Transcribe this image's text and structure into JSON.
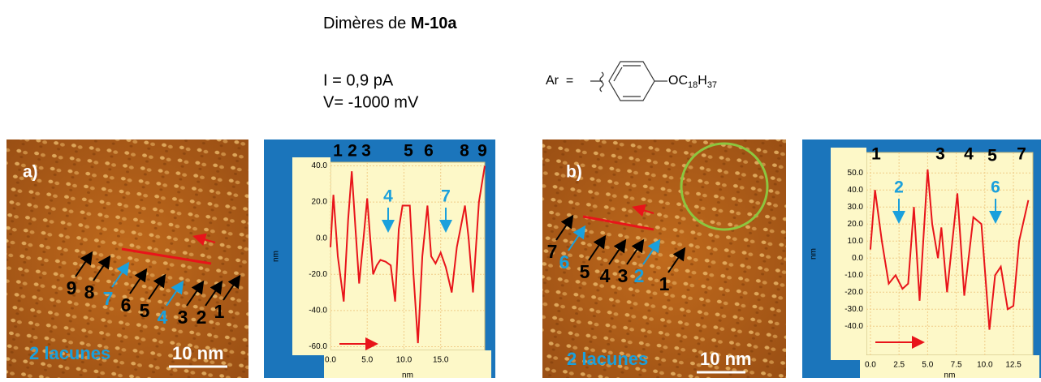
{
  "header": {
    "title_prefix": "Dimères de ",
    "title_bold": "M-10a",
    "current": "I = 0,9 pA",
    "voltage": "V= -1000 mV",
    "ar_label": "Ar  =",
    "substituent": [
      "OC",
      "18",
      "H",
      "37"
    ]
  },
  "images": [
    {
      "label": "a)",
      "defects": "2 lacunes",
      "scale": "10 nm",
      "markers": [
        {
          "text": "9",
          "color": "#000000"
        },
        {
          "text": "8",
          "color": "#000000"
        },
        {
          "text": "7",
          "color": "#1aa0dc"
        },
        {
          "text": "6",
          "color": "#000000"
        },
        {
          "text": "5",
          "color": "#000000"
        },
        {
          "text": "4",
          "color": "#1aa0dc"
        },
        {
          "text": "3",
          "color": "#000000"
        },
        {
          "text": "2",
          "color": "#000000"
        },
        {
          "text": "1",
          "color": "#000000"
        }
      ]
    },
    {
      "label": "b)",
      "defects": "2 lacunes",
      "scale": "10 nm",
      "markers": [
        {
          "text": "7",
          "color": "#000000"
        },
        {
          "text": "6",
          "color": "#1aa0dc"
        },
        {
          "text": "5",
          "color": "#000000"
        },
        {
          "text": "4",
          "color": "#000000"
        },
        {
          "text": "3",
          "color": "#000000"
        },
        {
          "text": "2",
          "color": "#1aa0dc"
        },
        {
          "text": "1",
          "color": "#000000"
        }
      ]
    }
  ],
  "chart_data": [
    {
      "type": "line",
      "x_label": "nm",
      "y_label": "nm",
      "x": [
        0,
        0.4,
        1.0,
        1.8,
        2.4,
        2.9,
        3.4,
        3.9,
        4.5,
        5.0,
        5.4,
        5.8,
        6.3,
        6.8,
        7.5,
        8.2,
        8.8,
        9.3,
        9.8,
        10.8,
        11.3,
        11.9,
        12.5,
        13.2,
        13.7,
        14.3,
        15.0,
        15.7,
        16.5,
        17.2,
        18.3,
        18.8,
        19.4,
        20.2,
        21.0
      ],
      "series": [
        {
          "color": "#e8141a",
          "values": [
            -5,
            24,
            -10,
            -35,
            10,
            37,
            5,
            -25,
            0,
            22,
            0,
            -20,
            -15,
            -12,
            -13,
            -15,
            -35,
            5,
            18,
            18,
            -20,
            -58,
            -10,
            18,
            -10,
            -14,
            -8,
            -16,
            -30,
            -5,
            18,
            0,
            -30,
            20,
            40
          ]
        }
      ],
      "xlim": [
        0,
        21
      ],
      "ylim": [
        -62,
        42
      ],
      "xticks": [
        {
          "value": 0,
          "label": "0.0"
        },
        {
          "value": 5,
          "label": "5.0"
        },
        {
          "value": 10,
          "label": "10.0"
        },
        {
          "value": 15,
          "label": "15.0"
        }
      ],
      "yticks": [
        {
          "value": 40,
          "label": "40.0"
        },
        {
          "value": 20,
          "label": "20.0"
        },
        {
          "value": 0,
          "label": "0.0"
        },
        {
          "value": -20,
          "label": "-20.0"
        },
        {
          "value": -40,
          "label": "-40.0"
        },
        {
          "value": -60,
          "label": "-60.0"
        }
      ],
      "grid": true,
      "annotations": [
        {
          "text": "1",
          "color": "#000000"
        },
        {
          "text": "2",
          "color": "#000000"
        },
        {
          "text": "3",
          "color": "#000000"
        },
        {
          "text": "5",
          "color": "#000000"
        },
        {
          "text": "6",
          "color": "#000000"
        },
        {
          "text": "8",
          "color": "#000000"
        },
        {
          "text": "9",
          "color": "#000000"
        },
        {
          "text": "4",
          "color": "#1aa0dc"
        },
        {
          "text": "7",
          "color": "#1aa0dc"
        }
      ]
    },
    {
      "type": "line",
      "x_label": "nm",
      "y_label": "nm",
      "x": [
        0,
        0.4,
        1.0,
        1.6,
        2.2,
        2.8,
        3.3,
        3.8,
        4.3,
        5.0,
        5.4,
        5.9,
        6.2,
        6.7,
        7.6,
        8.2,
        9.0,
        9.7,
        10.4,
        10.9,
        11.4,
        12.0,
        12.5,
        13.0,
        13.8
      ],
      "series": [
        {
          "color": "#e8141a",
          "values": [
            5,
            40,
            10,
            -15,
            -10,
            -18,
            -15,
            30,
            -25,
            52,
            20,
            0,
            18,
            -20,
            38,
            -22,
            24,
            20,
            -42,
            -10,
            -5,
            -30,
            -28,
            10,
            34
          ]
        }
      ],
      "xlim": [
        -0.35,
        14.2
      ],
      "ylim": [
        -57,
        62
      ],
      "xticks": [
        {
          "value": 0,
          "label": "0.0"
        },
        {
          "value": 2.5,
          "label": "2.5"
        },
        {
          "value": 5,
          "label": "5.0"
        },
        {
          "value": 7.5,
          "label": "7.5"
        },
        {
          "value": 10,
          "label": "10.0"
        },
        {
          "value": 12.5,
          "label": "12.5"
        }
      ],
      "yticks": [
        {
          "value": 50,
          "label": "50.0"
        },
        {
          "value": 40,
          "label": "40.0"
        },
        {
          "value": 30,
          "label": "30.0"
        },
        {
          "value": 20,
          "label": "20.0"
        },
        {
          "value": 10,
          "label": "10.0"
        },
        {
          "value": 0,
          "label": "0.0"
        },
        {
          "value": -10,
          "label": "-10.0"
        },
        {
          "value": -20,
          "label": "-20.0"
        },
        {
          "value": -30,
          "label": "-30.0"
        },
        {
          "value": -40,
          "label": "-40.0"
        }
      ],
      "grid": true,
      "annotations": [
        {
          "text": "1",
          "color": "#000000"
        },
        {
          "text": "3",
          "color": "#000000"
        },
        {
          "text": "4",
          "color": "#000000"
        },
        {
          "text": "5",
          "color": "#000000"
        },
        {
          "text": "7",
          "color": "#000000"
        },
        {
          "text": "2",
          "color": "#1aa0dc"
        },
        {
          "text": "6",
          "color": "#1aa0dc"
        }
      ]
    }
  ]
}
